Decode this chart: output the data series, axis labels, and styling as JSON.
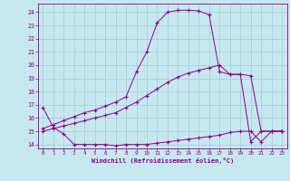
{
  "background_color": "#c8e8f0",
  "grid_color": "#99ccdd",
  "line_color": "#880088",
  "xlim": [
    -0.5,
    23.5
  ],
  "ylim": [
    13.7,
    24.65
  ],
  "ytick_vals": [
    14,
    15,
    16,
    17,
    18,
    19,
    20,
    21,
    22,
    23,
    24
  ],
  "xtick_vals": [
    0,
    1,
    2,
    3,
    4,
    5,
    6,
    7,
    8,
    9,
    10,
    11,
    12,
    13,
    14,
    15,
    16,
    17,
    18,
    19,
    20,
    21,
    22,
    23
  ],
  "xlabel": "Windchill (Refroidissement éolien,°C)",
  "curve1_x": [
    0,
    1,
    2,
    3,
    4,
    5,
    6,
    7,
    8,
    9,
    10,
    11,
    12,
    13,
    14,
    15,
    16,
    17,
    18,
    19,
    20,
    21,
    22,
    23
  ],
  "curve1_y": [
    16.8,
    15.3,
    14.8,
    14.0,
    14.0,
    14.0,
    14.0,
    13.9,
    14.0,
    14.0,
    14.0,
    14.1,
    14.2,
    14.3,
    14.4,
    14.5,
    14.6,
    14.7,
    14.9,
    15.0,
    15.0,
    14.2,
    15.0,
    15.0
  ],
  "curve2_x": [
    0,
    1,
    2,
    3,
    4,
    5,
    6,
    7,
    8,
    9,
    10,
    11,
    12,
    13,
    14,
    15,
    16,
    17,
    18,
    19,
    20,
    21,
    22,
    23
  ],
  "curve2_y": [
    15.0,
    15.2,
    15.4,
    15.6,
    15.8,
    16.0,
    16.2,
    16.4,
    16.8,
    17.2,
    17.7,
    18.2,
    18.7,
    19.1,
    19.4,
    19.6,
    19.8,
    20.0,
    19.3,
    19.3,
    19.2,
    15.0,
    15.0,
    15.0
  ],
  "curve3_x": [
    0,
    1,
    2,
    3,
    4,
    5,
    6,
    7,
    8,
    9,
    10,
    11,
    12,
    13,
    14,
    15,
    16,
    17,
    18,
    19,
    20,
    21,
    22,
    23
  ],
  "curve3_y": [
    15.2,
    15.5,
    15.8,
    16.1,
    16.4,
    16.6,
    16.9,
    17.2,
    17.6,
    19.5,
    21.0,
    23.2,
    24.0,
    24.15,
    24.15,
    24.1,
    23.8,
    19.5,
    19.3,
    19.3,
    14.2,
    15.0,
    15.0,
    15.0
  ]
}
